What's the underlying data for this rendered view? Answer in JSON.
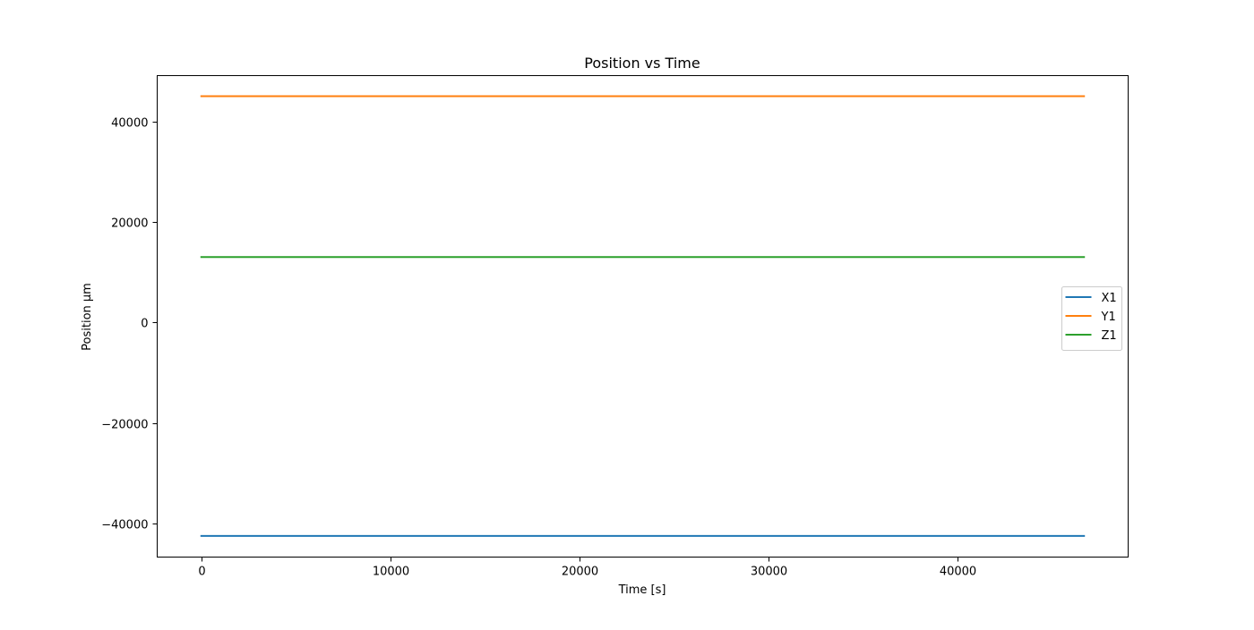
{
  "chart_data": {
    "type": "line",
    "title": "Position vs Time",
    "xlabel": "Time [s]",
    "ylabel": "Position µm",
    "xlim": [
      -2335,
      49035
    ],
    "ylim": [
      -46700,
      49100
    ],
    "xticks": [
      0,
      10000,
      20000,
      30000,
      40000
    ],
    "yticks": [
      -40000,
      -20000,
      0,
      20000,
      40000
    ],
    "xtick_labels": [
      "0",
      "10000",
      "20000",
      "30000",
      "40000"
    ],
    "ytick_labels": [
      "−40000",
      "−20000",
      "0",
      "20000",
      "40000"
    ],
    "grid": false,
    "legend_position": "center-right",
    "series": [
      {
        "name": "X1",
        "color": "#1f77b4",
        "x": [
          0,
          46700
        ],
        "y": [
          -42500,
          -42500
        ]
      },
      {
        "name": "Y1",
        "color": "#ff7f0e",
        "x": [
          0,
          46700
        ],
        "y": [
          45000,
          45000
        ]
      },
      {
        "name": "Z1",
        "color": "#2ca02c",
        "x": [
          0,
          46700
        ],
        "y": [
          13000,
          13000
        ]
      }
    ]
  }
}
